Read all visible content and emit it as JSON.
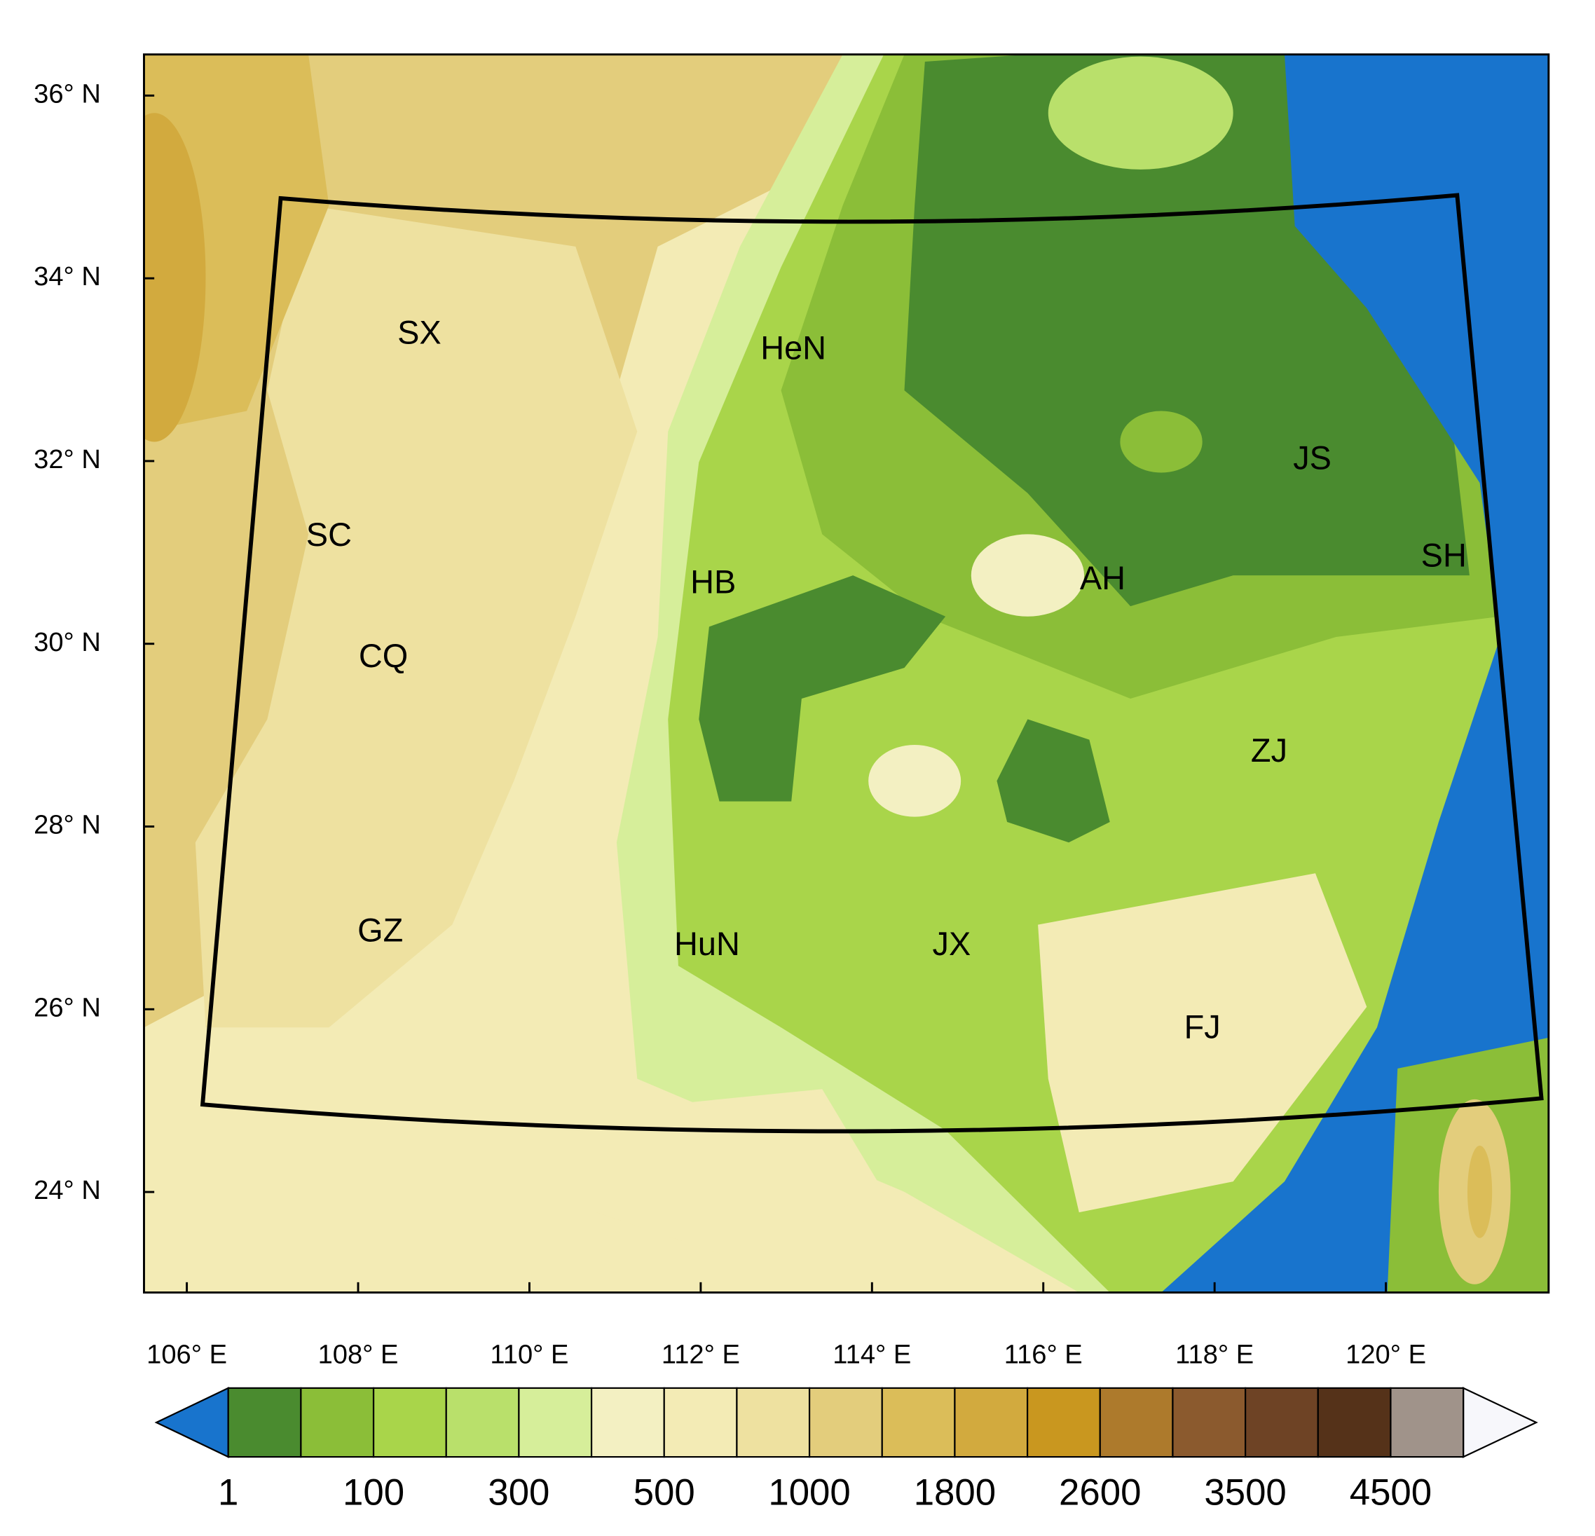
{
  "map": {
    "lat_ticks": [
      {
        "value": 36,
        "label": "36° N"
      },
      {
        "value": 34,
        "label": "34° N"
      },
      {
        "value": 32,
        "label": "32° N"
      },
      {
        "value": 30,
        "label": "30° N"
      },
      {
        "value": 28,
        "label": "28° N"
      },
      {
        "value": 26,
        "label": "26° N"
      },
      {
        "value": 24,
        "label": "24° N"
      }
    ],
    "lon_ticks": [
      {
        "value": 106,
        "label": "106° E"
      },
      {
        "value": 108,
        "label": "108° E"
      },
      {
        "value": 110,
        "label": "110° E"
      },
      {
        "value": 112,
        "label": "112° E"
      },
      {
        "value": 114,
        "label": "114° E"
      },
      {
        "value": 116,
        "label": "116° E"
      },
      {
        "value": 118,
        "label": "118° E"
      },
      {
        "value": 120,
        "label": "120° E"
      }
    ],
    "xlim": [
      105.5,
      121.9
    ],
    "ylim": [
      22.9,
      36.45
    ],
    "regions": [
      "SX",
      "HeN",
      "JS",
      "SC",
      "SH",
      "HB",
      "AH",
      "CQ",
      "ZJ",
      "GZ",
      "HuN",
      "JX",
      "FJ"
    ]
  },
  "colorbar": {
    "below_color": "#1874cd",
    "above_color": "#f7f7fb",
    "colors": [
      "#4a8b2f",
      "#8bbe38",
      "#a9d54a",
      "#b9e06b",
      "#d6ee9a",
      "#f3f0c2",
      "#f3ebb5",
      "#eee1a0",
      "#e3cd7c",
      "#dbbd59",
      "#d2aa3e",
      "#c9971f",
      "#ad7a2c",
      "#8b5a2e",
      "#6e4325",
      "#553219",
      "#a0938a"
    ],
    "labels": [
      1,
      100,
      300,
      500,
      1000,
      1800,
      2600,
      3500,
      4500
    ]
  }
}
